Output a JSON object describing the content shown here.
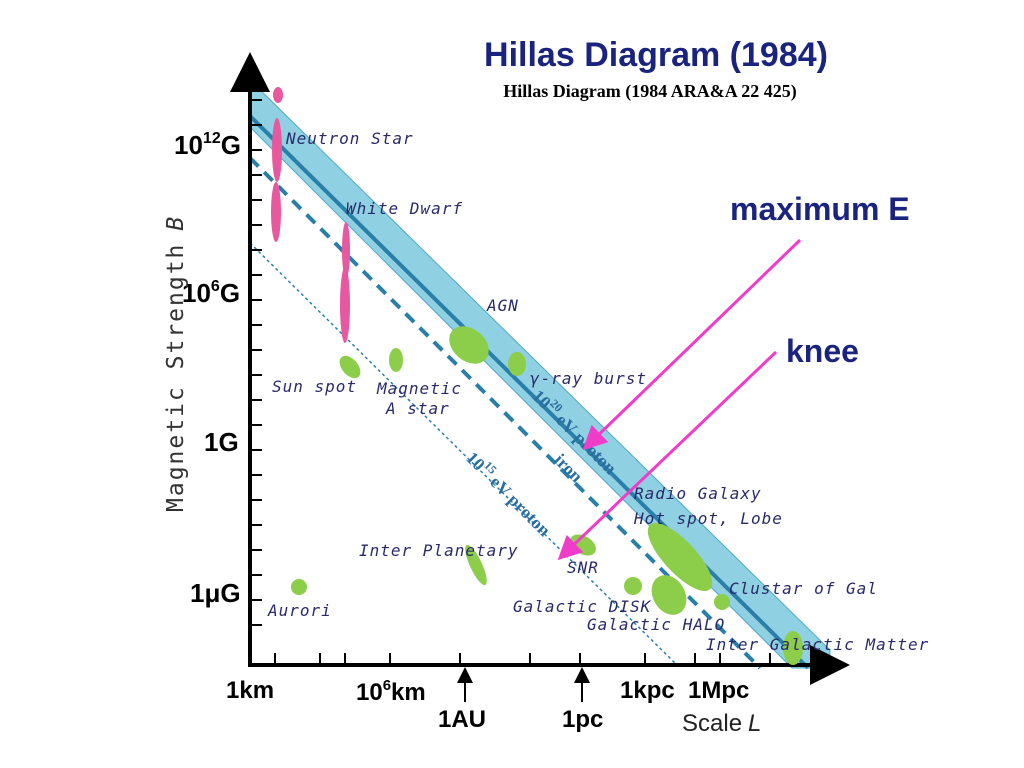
{
  "title": "Hillas Diagram (1984)",
  "subtitle": "Hillas Diagram (1984 ARA&A 22 425)",
  "y_axis": {
    "label": "Magnetic Strength",
    "label_var": "B",
    "ticks": [
      "10",
      "12",
      "G",
      "10",
      "6",
      "G",
      "1G",
      "1",
      "μ",
      "G"
    ]
  },
  "x_axis": {
    "label": "Scale",
    "label_var": "L",
    "ticks": [
      "1km",
      "10",
      "6",
      "km",
      "1AU",
      "1pc",
      "1kpc",
      "1Mpc"
    ]
  },
  "objects": [
    "Neutron Star",
    "White Dwarf",
    "AGN",
    "γ-ray burst",
    "Sun spot",
    "Magnetic",
    "A star",
    "Radio Galaxy",
    "Hot spot, Lobe",
    "Inter Planetary",
    "SNR",
    "Galactic DISK",
    "Galactic HALO",
    "Clustar of Gal",
    "Aurori",
    "Inter Galactic Matter"
  ],
  "lines": {
    "proton_20": [
      "10",
      "20",
      "eV proton"
    ],
    "iron": "iron",
    "proton_15": [
      "10",
      "15",
      "eV proton"
    ]
  },
  "annotations": {
    "maximum_e": "maximum E",
    "knee": "knee"
  },
  "colors": {
    "band": "#8fd0e2",
    "band_edge": "#4fa8c8",
    "line": "#2a7fa8",
    "green": "#8ccd4a",
    "pink": "#e8589e",
    "arrow": "#f03cc8",
    "title": "#1a237e"
  }
}
